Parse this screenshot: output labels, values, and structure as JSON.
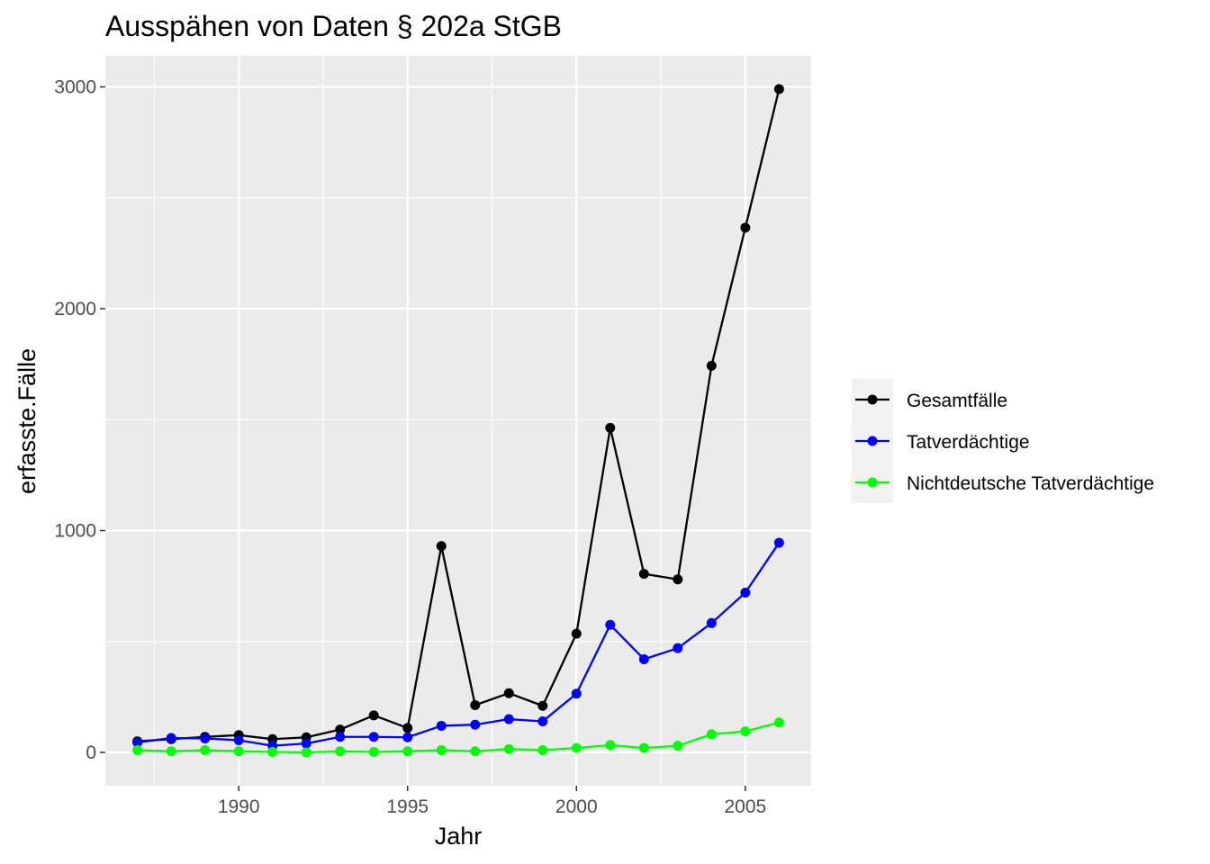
{
  "chart_data": {
    "type": "line",
    "title": "Ausspähen von Daten § 202a StGB",
    "xlabel": "Jahr",
    "ylabel": "erfasste.Fälle",
    "x": [
      1987,
      1988,
      1989,
      1990,
      1991,
      1992,
      1993,
      1994,
      1995,
      1996,
      1997,
      1998,
      1999,
      2000,
      2001,
      2002,
      2003,
      2004,
      2005,
      2006
    ],
    "xlim": [
      1986.05,
      2006.95
    ],
    "ylim": [
      -150,
      3140
    ],
    "x_ticks": [
      1990,
      1995,
      2000,
      2005
    ],
    "y_ticks": [
      0,
      1000,
      2000,
      3000
    ],
    "x_tick_labels": [
      "1990",
      "1995",
      "2000",
      "2005"
    ],
    "y_tick_labels": [
      "0",
      "1000",
      "2000",
      "3000"
    ],
    "grid": true,
    "legend_position": "right",
    "series": [
      {
        "name": "Gesamtfälle",
        "color": "#000000",
        "values": [
          50,
          60,
          70,
          78,
          60,
          68,
          103,
          167,
          110,
          930,
          213,
          267,
          210,
          535,
          1463,
          805,
          780,
          1743,
          2365,
          2990
        ]
      },
      {
        "name": "Tatverdächtige",
        "color": "#0000ff",
        "values": [
          45,
          65,
          63,
          55,
          30,
          40,
          70,
          70,
          68,
          120,
          125,
          150,
          140,
          265,
          575,
          420,
          470,
          583,
          720,
          945
        ]
      },
      {
        "name": "Nichtdeutsche Tatverdächtige",
        "color": "#00ff00",
        "values": [
          10,
          5,
          10,
          5,
          2,
          0,
          5,
          2,
          5,
          10,
          5,
          15,
          10,
          20,
          33,
          20,
          30,
          82,
          95,
          135
        ]
      }
    ]
  }
}
